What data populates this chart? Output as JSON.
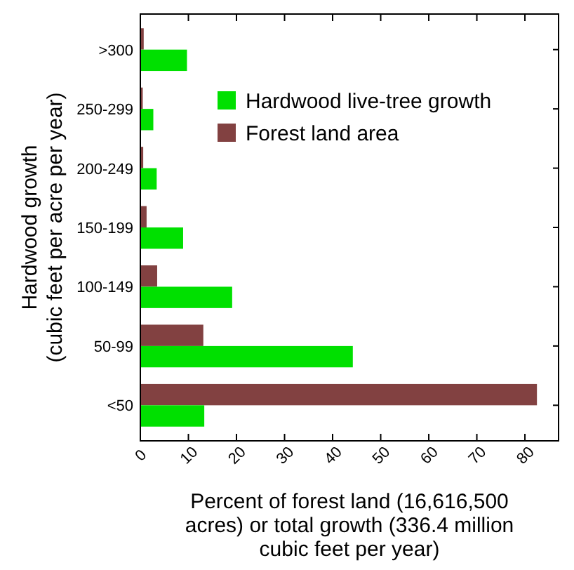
{
  "chart_data": {
    "type": "bar",
    "orientation": "horizontal",
    "xlabel": "Percent of forest land (16,616,500\nacres) or total growth (336.4 million\ncubic feet per year)",
    "ylabel": "Hardwood growth\n(cubic feet per acre per year)",
    "categories": [
      ">300",
      "250-299",
      "200-249",
      "150-199",
      "100-149",
      "50-99",
      "<50"
    ],
    "series": [
      {
        "name": "Forest land area",
        "color": "#824141",
        "values": [
          0.7,
          0.5,
          0.6,
          1.3,
          3.5,
          13.1,
          82.5
        ]
      },
      {
        "name": "Hardwood live-tree growth",
        "color": "#00e000",
        "values": [
          9.7,
          2.7,
          3.4,
          8.9,
          19.1,
          44.2,
          13.3
        ]
      }
    ],
    "xlim": [
      0,
      87
    ],
    "xticks": [
      0,
      10,
      20,
      30,
      40,
      50,
      60,
      70,
      80
    ],
    "legend": "top right",
    "grid": false
  }
}
